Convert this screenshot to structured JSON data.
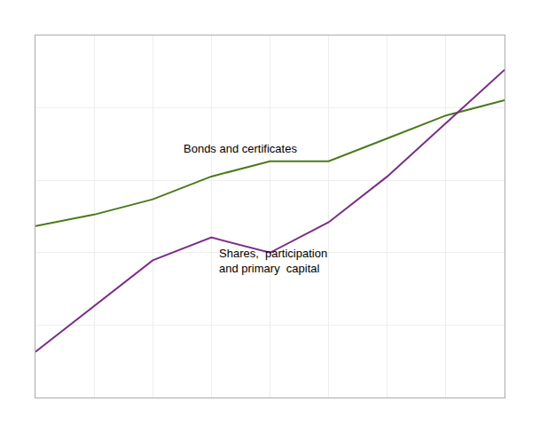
{
  "chart_data": {
    "type": "line",
    "x": [
      0,
      1,
      2,
      3,
      4,
      5,
      6,
      7,
      8
    ],
    "series": [
      {
        "color": "#4a7a1a",
        "values": [
          55,
          58,
          62,
          68,
          72,
          72,
          78,
          84,
          88
        ]
      },
      {
        "color": "#7b2d8b",
        "values": [
          22,
          34,
          46,
          52,
          48,
          56,
          68,
          82,
          96
        ]
      }
    ],
    "annotations": [
      {
        "text": "Bonds and certificates",
        "x": 2.5,
        "y": 73,
        "anchor": "bottom"
      },
      {
        "text": "Shares,  participation\nand primary  capital",
        "x": 3.1,
        "y": 50,
        "anchor": "top"
      }
    ],
    "xlim": [
      0,
      8
    ],
    "xticks": [
      0,
      1,
      2,
      3,
      4,
      5,
      6,
      7,
      8
    ],
    "ylim": [
      10,
      105
    ],
    "yticks": [
      10,
      29,
      48,
      67,
      86,
      105
    ],
    "grid": true,
    "tick_labels": false
  }
}
